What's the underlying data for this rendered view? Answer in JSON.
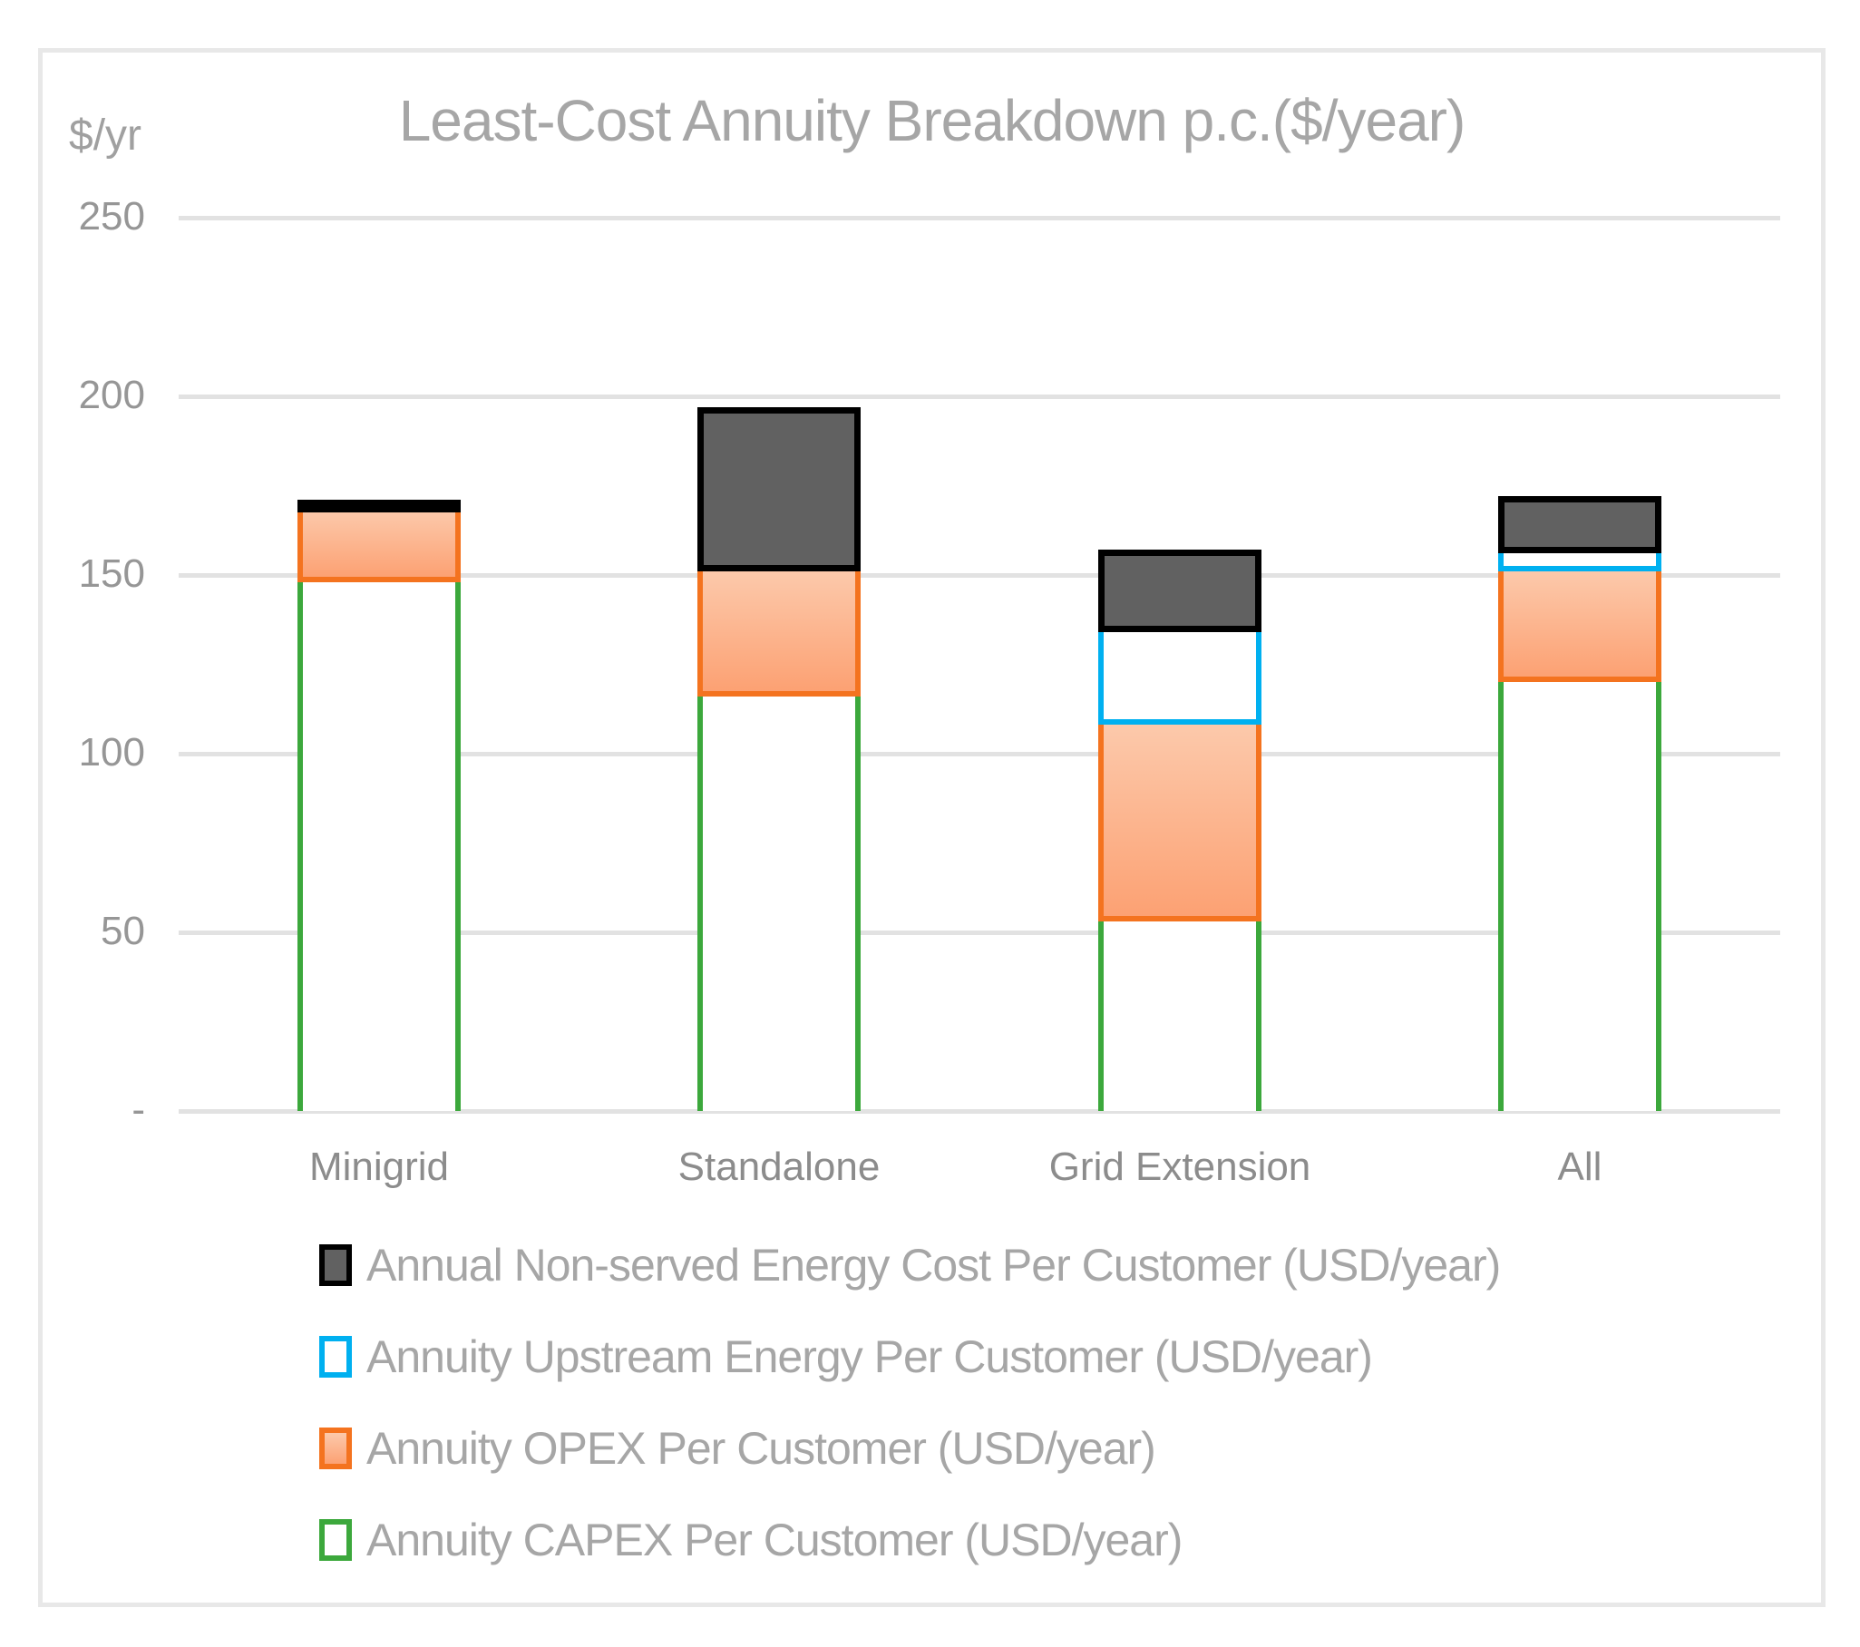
{
  "chart": {
    "title": "Least-Cost Annuity Breakdown p.c.($/year)",
    "y_axis_unit_label": "$/yr",
    "grid_color": "#e2e2e2",
    "frame_color": "#e8e8e8",
    "title_color": "#a6a6a6",
    "tick_label_color": "#969696",
    "category_label_color": "#8c8c8c",
    "legend_text_color": "#a6a6a6"
  },
  "chart_data": {
    "type": "bar",
    "stacked": true,
    "title": "Least-Cost Annuity Breakdown p.c.($/year)",
    "ylabel": "$/yr",
    "xlabel": "",
    "ylim": [
      0,
      250
    ],
    "grid": true,
    "legend_position": "bottom",
    "categories": [
      "Minigrid",
      "Standalone",
      "Grid Extension",
      "All"
    ],
    "y_ticks": [
      {
        "value": 250,
        "label": "250"
      },
      {
        "value": 200,
        "label": "200"
      },
      {
        "value": 150,
        "label": "150"
      },
      {
        "value": 100,
        "label": "100"
      },
      {
        "value": 50,
        "label": "50"
      },
      {
        "value": 0,
        "label": "-"
      }
    ],
    "series": [
      {
        "key": "capex",
        "name": "Annuity CAPEX Per Customer (USD/year)",
        "values": [
          148,
          116,
          53,
          120
        ],
        "fill": "#ffffff",
        "border": "#3ca83c"
      },
      {
        "key": "opex",
        "name": "Annuity OPEX Per Customer (USD/year)",
        "values": [
          20,
          35,
          55,
          31
        ],
        "fill_top": "#fcc9ab",
        "fill_bottom": "#fca173",
        "border": "#f4731f"
      },
      {
        "key": "upstream",
        "name": "Annuity Upstream Energy Per Customer (USD/year)",
        "values": [
          0,
          0,
          26,
          5
        ],
        "fill": "#ffffff",
        "border": "#00b0f0"
      },
      {
        "key": "nse",
        "name": "Annual Non-served Energy Cost Per Customer (USD/year)",
        "values": [
          3,
          46,
          23,
          16
        ],
        "fill": "#616161",
        "border": "#000000"
      }
    ],
    "legend_order": [
      "nse",
      "upstream",
      "opex",
      "capex"
    ],
    "totals": [
      171,
      197,
      157,
      172
    ]
  }
}
